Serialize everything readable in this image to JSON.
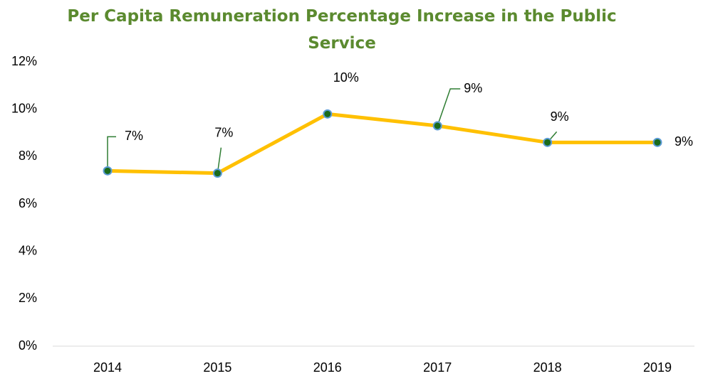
{
  "chart_data": {
    "type": "line",
    "title": "Per Capita Remuneration Percentage Increase in the Public Service",
    "categories": [
      "2014",
      "2015",
      "2016",
      "2017",
      "2018",
      "2019"
    ],
    "series": [
      {
        "name": "Percentage Increase",
        "color": "#ffc000",
        "values": [
          7.4,
          7.3,
          9.8,
          9.3,
          8.6,
          8.6
        ],
        "value_labels": [
          "7%",
          "7%",
          "10%",
          "9%",
          "9%",
          "9%"
        ]
      }
    ],
    "ylim": [
      0,
      12
    ],
    "yticks": [
      {
        "value": 0,
        "label": "0%"
      },
      {
        "value": 2,
        "label": "2%"
      },
      {
        "value": 4,
        "label": "4%"
      },
      {
        "value": 6,
        "label": "6%"
      },
      {
        "value": 8,
        "label": "8%"
      },
      {
        "value": 10,
        "label": "10%"
      },
      {
        "value": 12,
        "label": "12%"
      }
    ],
    "grid": false
  }
}
